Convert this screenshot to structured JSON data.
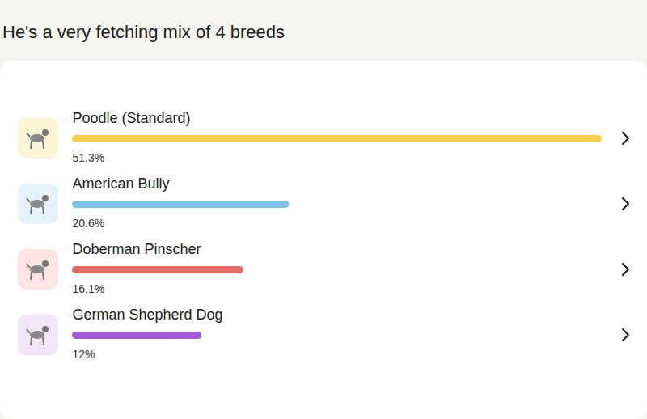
{
  "chart_data": {
    "type": "bar",
    "orientation": "horizontal",
    "title": "He's a very fetching mix of 4 breeds",
    "categories": [
      "Poodle (Standard)",
      "American Bully",
      "Doberman Pinscher",
      "German Shepherd Dog"
    ],
    "values": [
      51.3,
      20.6,
      16.1,
      12
    ],
    "value_labels": [
      "51.3%",
      "20.6%",
      "16.1%",
      "12%"
    ],
    "colors": [
      "#f5d04e",
      "#7cc3ec",
      "#e06c68",
      "#a45cd6"
    ],
    "xlim": [
      0,
      51.3
    ],
    "xticks": [],
    "tick_labels": false,
    "data_labels": true
  }
}
